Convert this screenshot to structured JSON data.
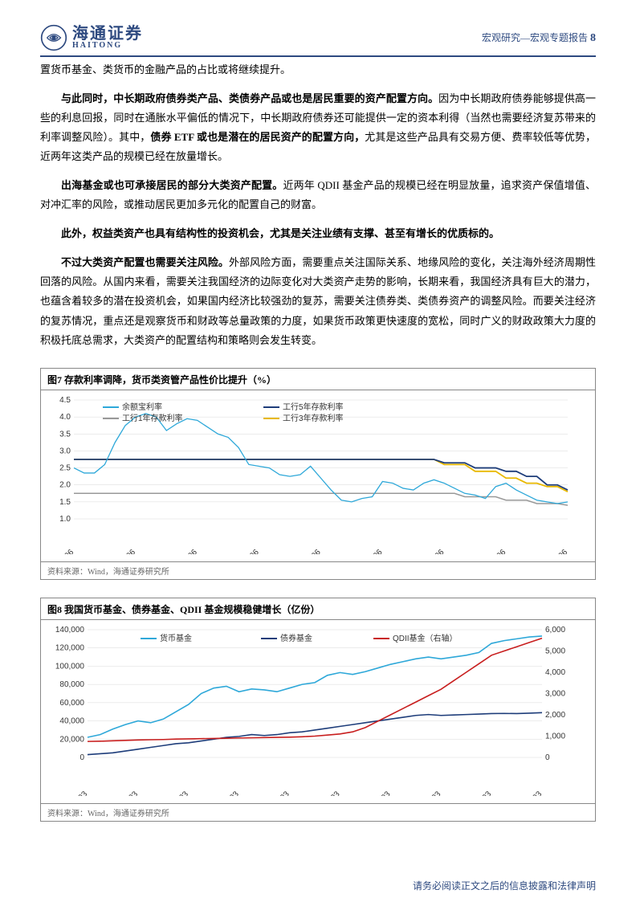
{
  "header": {
    "logo_cn": "海通证券",
    "logo_en": "HAITONG",
    "category": "宏观研究—宏观专题报告",
    "page_num": "8"
  },
  "paragraphs": {
    "p1": "置货币基金、类货币的金融产品的占比或将继续提升。",
    "p2_bold1": "与此同时，中长期政府债券类产品、类债券产品或也是居民重要的资产配置方向。",
    "p2_text1": "因为中长期政府债券能够提供高一些的利息回报，同时在通胀水平偏低的情况下，中长期政府债券还可能提供一定的资本利得（当然也需要经济复苏带来的利率调整风险）。其中，",
    "p2_bold2": "债券 ETF 或也是潜在的居民资产的配置方向，",
    "p2_text2": "尤其是这些产品具有交易方便、费率较低等优势，近两年这类产品的规模已经在放量增长。",
    "p3_bold": "出海基金或也可承接居民的部分大类资产配置。",
    "p3_text": "近两年 QDII 基金产品的规模已经在明显放量，追求资产保值增值、对冲汇率的风险，或推动居民更加多元化的配置自己的财富。",
    "p4_bold": "此外，权益类资产也具有结构性的投资机会，尤其是关注业绩有支撑、甚至有增长的优质标的。",
    "p5_bold": "不过大类资产配置也需要关注风险。",
    "p5_text": "外部风险方面，需要重点关注国际关系、地缘风险的变化，关注海外经济周期性回落的风险。从国内来看，需要关注我国经济的边际变化对大类资产走势的影响，长期来看，我国经济具有巨大的潜力，也蕴含着较多的潜在投资机会，如果国内经济比较强劲的复苏，需要关注债券类、类债券资产的调整风险。而要关注经济的复苏情况，重点还是观察货币和财政等总量政策的力度，如果货币政策更快速度的宽松，同时广义的财政政策大力度的积极托底总需求，大类资产的配置结构和策略则会发生转变。"
  },
  "fig7": {
    "title": "图7  存款利率调降，货币类资管产品性价比提升（%）",
    "source": "资料来源：Wind，海通证券研究所",
    "legend": {
      "s1": "余额宝利率",
      "s2": "工行5年存款利率",
      "s3": "工行1年存款利率",
      "s4": "工行3年存款利率"
    },
    "colors": {
      "s1": "#2ea8d9",
      "s2": "#1e3d7a",
      "s3": "#999999",
      "s4": "#e8b800",
      "grid": "#d8d8d8",
      "axis": "#888888",
      "bg": "#ffffff",
      "text": "#333333"
    },
    "y": {
      "min": 1.0,
      "max": 4.5,
      "step": 0.5,
      "ticks": [
        "1.0",
        "1.5",
        "2.0",
        "2.5",
        "3.0",
        "3.5",
        "4.0",
        "4.5"
      ]
    },
    "x": {
      "labels": [
        "2016-06",
        "2017-06",
        "2018-06",
        "2019-06",
        "2020-06",
        "2021-06",
        "2022-06",
        "2023-06",
        "2024-06"
      ]
    },
    "series": {
      "s1": [
        2.5,
        2.35,
        2.35,
        2.6,
        3.25,
        3.75,
        4.0,
        4.1,
        4.0,
        3.6,
        3.8,
        3.95,
        3.9,
        3.7,
        3.5,
        3.4,
        3.1,
        2.6,
        2.55,
        2.5,
        2.3,
        2.25,
        2.3,
        2.55,
        2.2,
        1.85,
        1.55,
        1.5,
        1.6,
        1.65,
        2.1,
        2.05,
        1.9,
        1.85,
        2.05,
        2.15,
        2.05,
        1.9,
        1.75,
        1.7,
        1.6,
        1.95,
        2.05,
        1.85,
        1.7,
        1.55,
        1.5,
        1.45,
        1.5
      ],
      "s2": [
        2.75,
        2.75,
        2.75,
        2.75,
        2.75,
        2.75,
        2.75,
        2.75,
        2.75,
        2.75,
        2.75,
        2.75,
        2.75,
        2.75,
        2.75,
        2.75,
        2.75,
        2.75,
        2.75,
        2.75,
        2.75,
        2.75,
        2.75,
        2.75,
        2.75,
        2.75,
        2.75,
        2.75,
        2.75,
        2.75,
        2.75,
        2.75,
        2.75,
        2.75,
        2.75,
        2.75,
        2.65,
        2.65,
        2.65,
        2.5,
        2.5,
        2.5,
        2.4,
        2.4,
        2.25,
        2.25,
        2.0,
        2.0,
        1.85
      ],
      "s3": [
        1.75,
        1.75,
        1.75,
        1.75,
        1.75,
        1.75,
        1.75,
        1.75,
        1.75,
        1.75,
        1.75,
        1.75,
        1.75,
        1.75,
        1.75,
        1.75,
        1.75,
        1.75,
        1.75,
        1.75,
        1.75,
        1.75,
        1.75,
        1.75,
        1.75,
        1.75,
        1.75,
        1.75,
        1.75,
        1.75,
        1.75,
        1.75,
        1.75,
        1.75,
        1.75,
        1.75,
        1.75,
        1.75,
        1.65,
        1.65,
        1.65,
        1.65,
        1.55,
        1.55,
        1.55,
        1.45,
        1.45,
        1.45,
        1.4
      ],
      "s4": [
        2.75,
        2.75,
        2.75,
        2.75,
        2.75,
        2.75,
        2.75,
        2.75,
        2.75,
        2.75,
        2.75,
        2.75,
        2.75,
        2.75,
        2.75,
        2.75,
        2.75,
        2.75,
        2.75,
        2.75,
        2.75,
        2.75,
        2.75,
        2.75,
        2.75,
        2.75,
        2.75,
        2.75,
        2.75,
        2.75,
        2.75,
        2.75,
        2.75,
        2.75,
        2.75,
        2.75,
        2.6,
        2.6,
        2.6,
        2.4,
        2.4,
        2.4,
        2.2,
        2.2,
        2.05,
        2.05,
        1.95,
        1.95,
        1.8
      ]
    }
  },
  "fig8": {
    "title": "图8  我国货币基金、债券基金、QDII 基金规模稳健增长（亿份）",
    "source": "资料来源：Wind，海通证券研究所",
    "legend": {
      "s1": "货币基金",
      "s2": "债券基金",
      "s3": "QDII基金（右轴）"
    },
    "colors": {
      "s1": "#2ea8d9",
      "s2": "#1e3d7a",
      "s3": "#c81e1e",
      "grid": "#d8d8d8",
      "axis": "#888888",
      "bg": "#ffffff",
      "text": "#333333"
    },
    "yLeft": {
      "min": 0,
      "max": 140000,
      "step": 20000,
      "ticks": [
        "0",
        "20,000",
        "40,000",
        "60,000",
        "80,000",
        "100,000",
        "120,000",
        "140,000"
      ]
    },
    "yRight": {
      "min": 0,
      "max": 6000,
      "step": 1000,
      "ticks": [
        "0",
        "1,000",
        "2,000",
        "3,000",
        "4,000",
        "5,000",
        "6,000"
      ]
    },
    "x": {
      "labels": [
        "2015-03",
        "2016-03",
        "2017-03",
        "2018-03",
        "2019-03",
        "2020-03",
        "2021-03",
        "2022-03",
        "2023-03",
        "2024-03"
      ]
    },
    "series": {
      "s1": [
        22000,
        25000,
        31000,
        36000,
        40000,
        38000,
        42000,
        50000,
        58000,
        70000,
        76000,
        78000,
        72000,
        75000,
        74000,
        72000,
        76000,
        80000,
        82000,
        90000,
        93000,
        91000,
        94000,
        98000,
        102000,
        105000,
        108000,
        110000,
        108000,
        110000,
        112000,
        115000,
        125000,
        128000,
        130000,
        132000,
        133000
      ],
      "s2": [
        3000,
        4000,
        5000,
        7000,
        9000,
        11000,
        13000,
        15000,
        16000,
        18000,
        20000,
        22000,
        23000,
        25000,
        24000,
        25000,
        27000,
        28000,
        30000,
        32000,
        34000,
        36000,
        38000,
        40000,
        42000,
        44000,
        46000,
        47000,
        46000,
        46500,
        47000,
        47500,
        48000,
        48200,
        48000,
        48500,
        49000
      ],
      "s3": [
        750,
        760,
        780,
        800,
        820,
        830,
        840,
        860,
        870,
        880,
        890,
        900,
        910,
        920,
        930,
        940,
        950,
        970,
        1000,
        1050,
        1100,
        1200,
        1400,
        1700,
        2000,
        2300,
        2600,
        2900,
        3200,
        3600,
        4000,
        4400,
        4800,
        5000,
        5200,
        5400,
        5600
      ]
    }
  },
  "footer": "请务必阅读正文之后的信息披露和法律声明"
}
